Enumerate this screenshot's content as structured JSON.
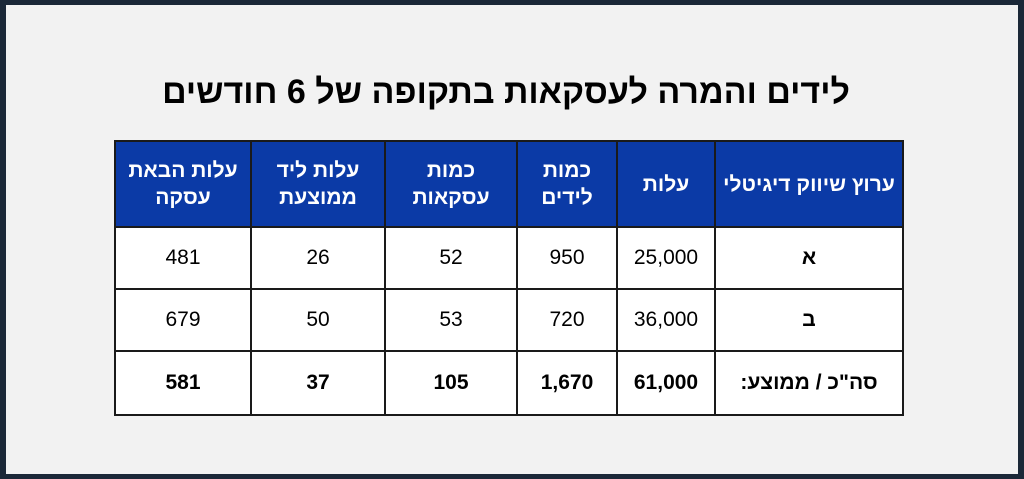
{
  "title": "לידים והמרה לעסקאות בתקופה של 6 חודשים",
  "table": {
    "headers": [
      "ערוץ שיווק דיגיטלי",
      "עלות",
      "כמות לידים",
      "כמות עסקאות",
      "עלות ליד ממוצעת",
      "עלות הבאת עסקה"
    ],
    "rows": [
      [
        "א",
        "25,000",
        "950",
        "52",
        "26",
        "481"
      ],
      [
        "ב",
        "36,000",
        "720",
        "53",
        "50",
        "679"
      ]
    ],
    "total": [
      "סה\"כ / ממוצע:",
      "61,000",
      "1,670",
      "105",
      "37",
      "581"
    ]
  }
}
